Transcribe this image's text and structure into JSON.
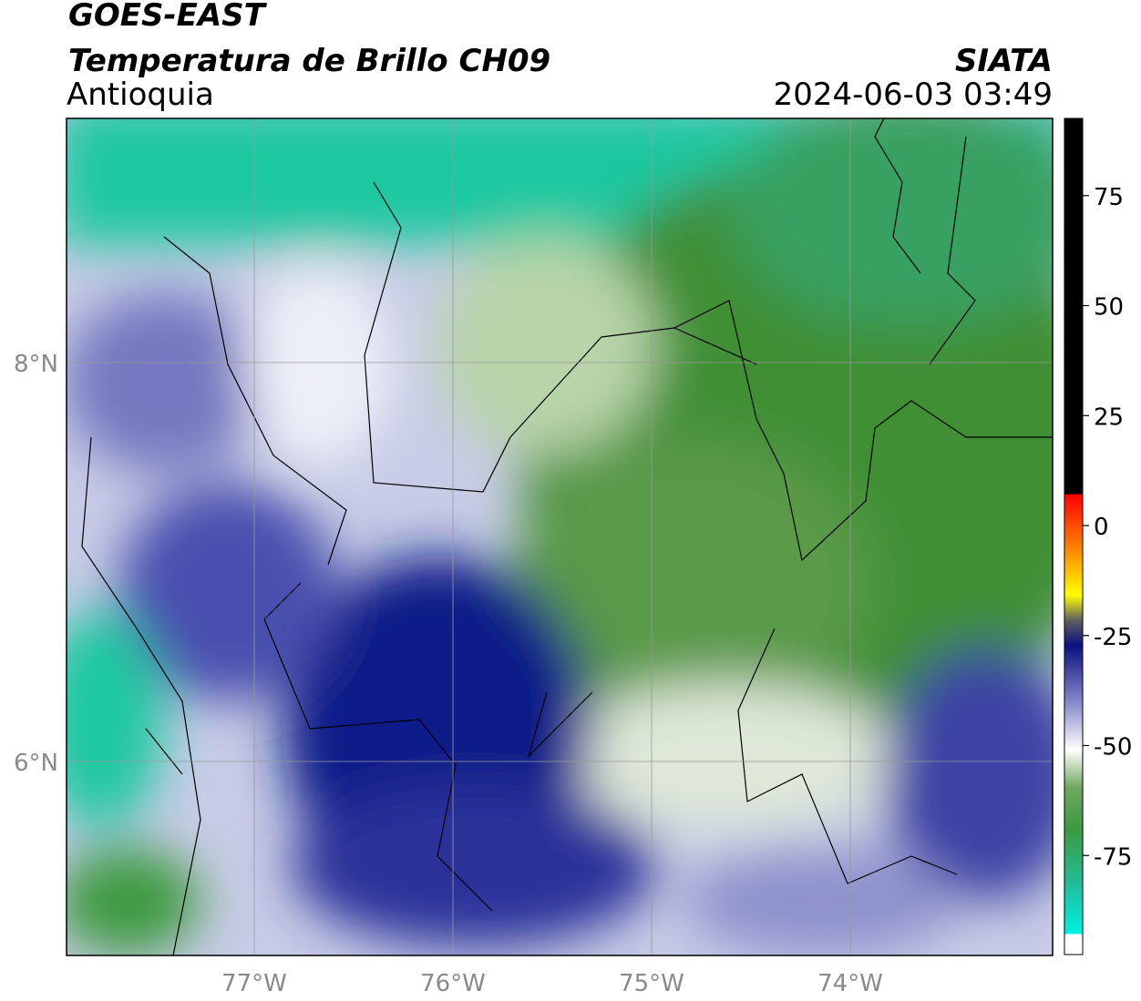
{
  "header": {
    "title": "GOES-EAST",
    "subtitle": "Temperatura de Brillo CH09",
    "region": "Antioquia",
    "source": "SIATA",
    "datetime": "2024-06-03 03:49"
  },
  "map": {
    "lat_labels": [
      "8°N",
      "6°N"
    ],
    "lon_labels": [
      "77°W",
      "76°W",
      "75°W",
      "74°W"
    ]
  },
  "colorbar": {
    "ticks": [
      75,
      50,
      25,
      0,
      -25,
      -50,
      -75
    ]
  }
}
